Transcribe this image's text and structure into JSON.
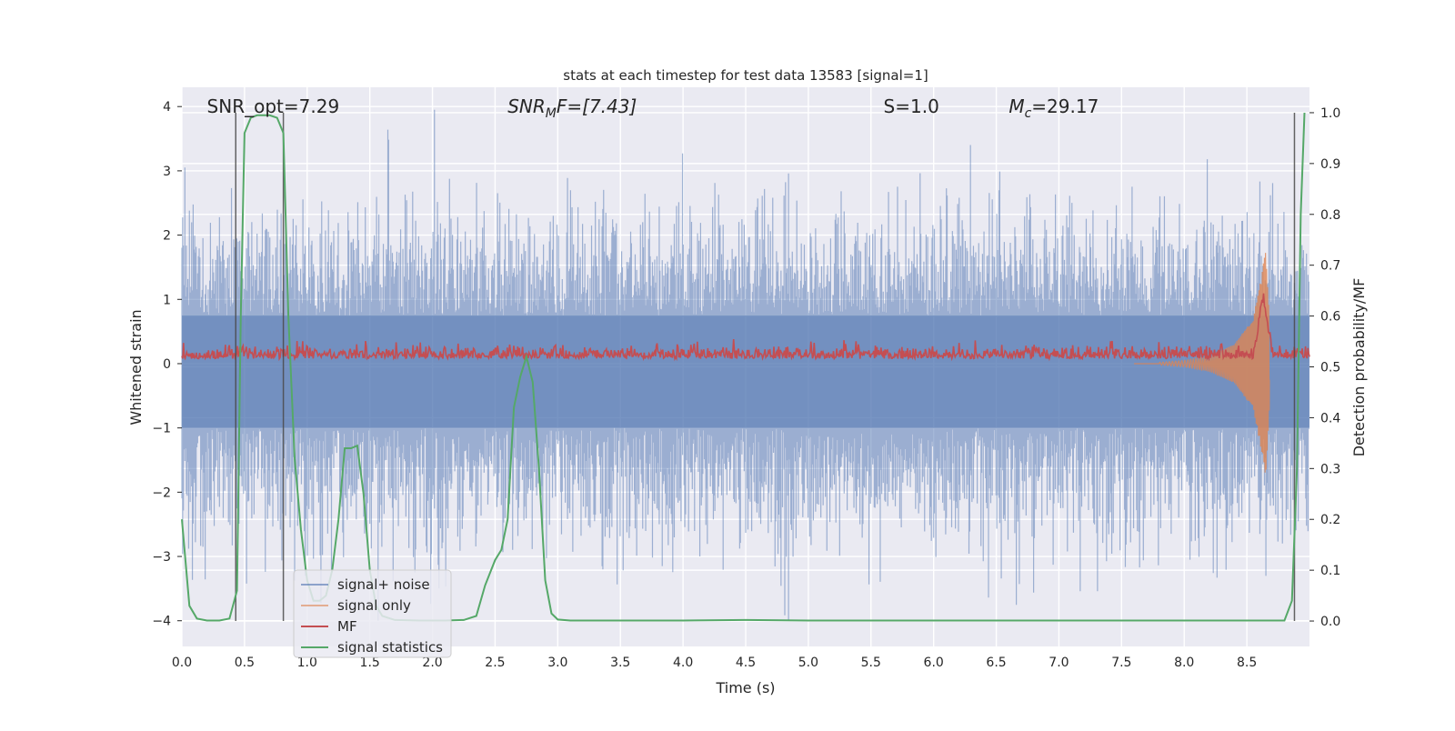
{
  "chart_data": {
    "type": "line",
    "title": "stats at each timestep for test data 13583 [signal=1]",
    "xlabel": "Time (s)",
    "ylabel_left": "Whitened strain",
    "ylabel_right": "Detection probability/MF",
    "xlim": [
      0,
      9.0
    ],
    "ylim_left": [
      -4.4,
      4.3
    ],
    "ylim_right": [
      -0.05,
      1.05
    ],
    "x_ticks": [
      0.0,
      0.5,
      1.0,
      1.5,
      2.0,
      2.5,
      3.0,
      3.5,
      4.0,
      4.5,
      5.0,
      5.5,
      6.0,
      6.5,
      7.0,
      7.5,
      8.0,
      8.5
    ],
    "x_tick_labels": [
      "0.0",
      "0.5",
      "1.0",
      "1.5",
      "2.0",
      "2.5",
      "3.0",
      "3.5",
      "4.0",
      "4.5",
      "5.0",
      "5.5",
      "6.0",
      "6.5",
      "7.0",
      "7.5",
      "8.0",
      "8.5"
    ],
    "y_left_ticks": [
      4,
      3,
      2,
      1,
      0,
      -1,
      -2,
      -3,
      -4
    ],
    "y_left_tick_labels": [
      "4",
      "3",
      "2",
      "1",
      "0",
      "−1",
      "−2",
      "−3",
      "−4"
    ],
    "y_right_ticks": [
      1.0,
      0.9,
      0.8,
      0.7,
      0.6,
      0.5,
      0.4,
      0.3,
      0.2,
      0.1,
      0.0
    ],
    "y_right_tick_labels": [
      "1.0",
      "0.9",
      "0.8",
      "0.7",
      "0.6",
      "0.5",
      "0.4",
      "0.3",
      "0.2",
      "0.1",
      "0.0"
    ],
    "grid": true,
    "legend_position": "lower-left",
    "annotations": [
      {
        "label": "SNR_opt=7.29",
        "x": 0.2
      },
      {
        "label": "SNR",
        "sub": "M",
        "suffix": "F=[7.43]",
        "x": 2.6
      },
      {
        "label": "S",
        "suffix": "=1.0",
        "x": 5.6
      },
      {
        "label": "M",
        "sub": "c",
        "suffix": "=29.17",
        "x": 6.6
      }
    ],
    "vertical_lines": [
      0.43,
      0.81,
      8.88
    ],
    "series": [
      {
        "name": "signal+ noise",
        "color": "#4c72b0",
        "axis": "left",
        "style": "dense noise trace, values within approx [-4.0, 4.0]",
        "envelope": {
          "upper_typical": 1.9,
          "lower_typical": -2.2
        }
      },
      {
        "name": "signal only",
        "color": "#dd8452",
        "axis": "left",
        "style": "chirp appearing near end",
        "x": [
          7.8,
          8.0,
          8.2,
          8.4,
          8.55,
          8.62,
          8.65,
          8.7
        ],
        "amplitude": [
          0.02,
          0.05,
          0.12,
          0.3,
          0.7,
          1.4,
          1.8,
          0.0
        ]
      },
      {
        "name": "MF",
        "color": "#c44e52",
        "axis": "right",
        "style": "noisy trace around 0.52 on right axis, spike near 8.63",
        "baseline": 0.52,
        "spike": {
          "x": 8.63,
          "value": 0.64
        }
      },
      {
        "name": "signal statistics",
        "color": "#55a868",
        "axis": "right",
        "x": [
          0.0,
          0.06,
          0.12,
          0.2,
          0.3,
          0.38,
          0.44,
          0.47,
          0.5,
          0.55,
          0.6,
          0.7,
          0.76,
          0.81,
          0.85,
          0.9,
          0.95,
          1.0,
          1.05,
          1.1,
          1.15,
          1.2,
          1.25,
          1.3,
          1.35,
          1.4,
          1.45,
          1.5,
          1.55,
          1.6,
          1.7,
          1.9,
          2.1,
          2.25,
          2.35,
          2.42,
          2.5,
          2.55,
          2.6,
          2.65,
          2.7,
          2.75,
          2.8,
          2.85,
          2.9,
          2.95,
          3.0,
          3.1,
          3.5,
          4.0,
          4.5,
          5.0,
          6.0,
          7.0,
          8.0,
          8.5,
          8.8,
          8.86,
          8.9,
          8.93,
          8.96
        ],
        "y": [
          0.2,
          0.03,
          0.005,
          0.001,
          0.001,
          0.005,
          0.06,
          0.6,
          0.96,
          0.99,
          0.995,
          0.995,
          0.99,
          0.96,
          0.6,
          0.32,
          0.18,
          0.08,
          0.04,
          0.04,
          0.05,
          0.1,
          0.2,
          0.34,
          0.34,
          0.345,
          0.25,
          0.1,
          0.03,
          0.01,
          0.002,
          0.001,
          0.001,
          0.002,
          0.01,
          0.07,
          0.12,
          0.14,
          0.2,
          0.42,
          0.48,
          0.52,
          0.47,
          0.3,
          0.08,
          0.015,
          0.003,
          0.001,
          0.001,
          0.001,
          0.002,
          0.001,
          0.001,
          0.001,
          0.001,
          0.001,
          0.001,
          0.04,
          0.3,
          0.8,
          1.0
        ]
      }
    ]
  }
}
